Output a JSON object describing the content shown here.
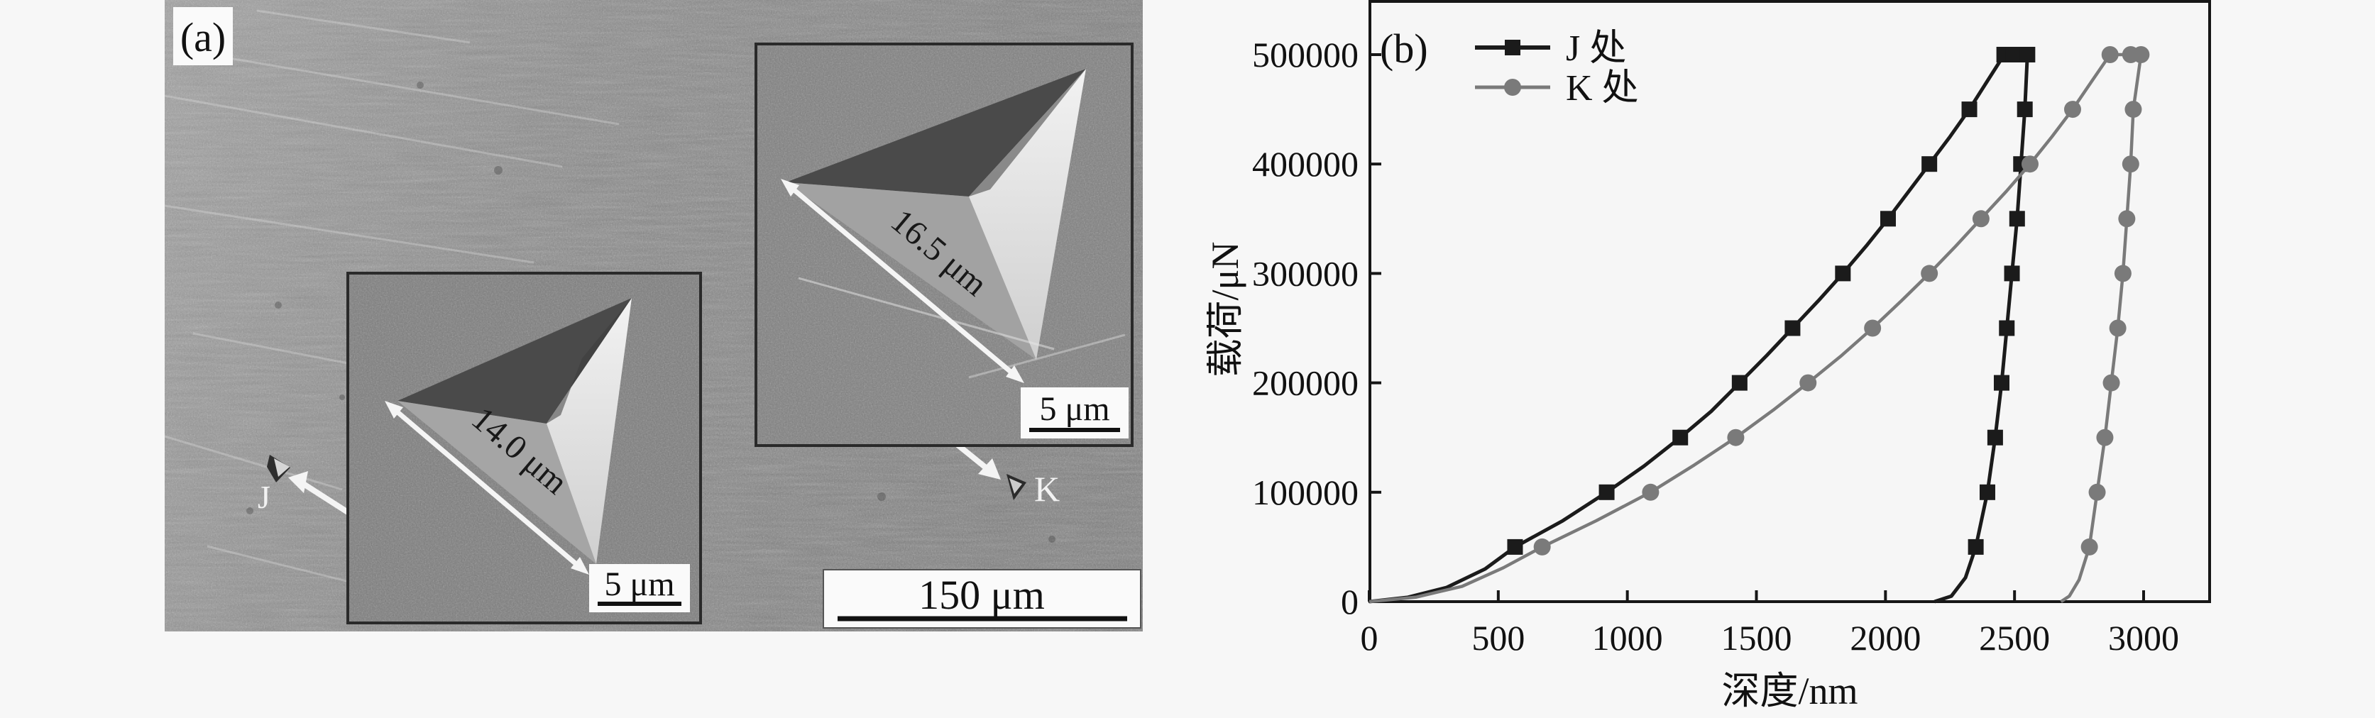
{
  "panel_a": {
    "label": "(a)",
    "j_marker_label": "J",
    "k_marker_label": "K",
    "inset_left": {
      "measurement_label": "14.0 μm",
      "scale_bar_label": "5 μm"
    },
    "inset_right": {
      "measurement_label": "16.5 μm",
      "scale_bar_label": "5 μm"
    },
    "main_scale_bar_label": "150 μm"
  },
  "panel_b": {
    "label": "(b)"
  },
  "chart_data": {
    "type": "line",
    "title": "",
    "xlabel": "深度/nm",
    "ylabel": "载荷/μN",
    "xlim": [
      0,
      3260
    ],
    "ylim": [
      0,
      548000
    ],
    "x_ticks": [
      0,
      500,
      1000,
      1500,
      2000,
      2500,
      3000
    ],
    "y_ticks": [
      0,
      100000,
      200000,
      300000,
      400000,
      500000
    ],
    "grid": false,
    "legend_position": "top-left-inside",
    "series": [
      {
        "name": "J 处",
        "color": "#1b1b1b",
        "marker": "square",
        "description": "loading to 500000 uN, hold, then unloading; residual depth ~2190 nm",
        "curve": [
          [
            0,
            0
          ],
          [
            150,
            4000
          ],
          [
            300,
            13000
          ],
          [
            450,
            30000
          ],
          [
            565,
            50000
          ],
          [
            750,
            74000
          ],
          [
            920,
            100000
          ],
          [
            1065,
            124000
          ],
          [
            1205,
            150000
          ],
          [
            1325,
            174000
          ],
          [
            1435,
            200000
          ],
          [
            1540,
            225000
          ],
          [
            1640,
            250000
          ],
          [
            1740,
            275000
          ],
          [
            1835,
            300000
          ],
          [
            1925,
            325000
          ],
          [
            2010,
            350000
          ],
          [
            2090,
            375000
          ],
          [
            2170,
            400000
          ],
          [
            2250,
            425000
          ],
          [
            2325,
            450000
          ],
          [
            2395,
            476000
          ],
          [
            2460,
            500000
          ],
          [
            2550,
            500000
          ],
          [
            2540,
            450000
          ],
          [
            2525,
            400000
          ],
          [
            2510,
            350000
          ],
          [
            2490,
            300000
          ],
          [
            2470,
            250000
          ],
          [
            2450,
            200000
          ],
          [
            2425,
            150000
          ],
          [
            2395,
            100000
          ],
          [
            2350,
            50000
          ],
          [
            2310,
            22000
          ],
          [
            2255,
            5000
          ],
          [
            2190,
            0
          ]
        ],
        "marker_points": [
          [
            565,
            50000
          ],
          [
            920,
            100000
          ],
          [
            1205,
            150000
          ],
          [
            1435,
            200000
          ],
          [
            1640,
            250000
          ],
          [
            1835,
            300000
          ],
          [
            2010,
            350000
          ],
          [
            2170,
            400000
          ],
          [
            2325,
            450000
          ],
          [
            2460,
            500000
          ],
          [
            2495,
            500000
          ],
          [
            2520,
            500000
          ],
          [
            2550,
            500000
          ],
          [
            2540,
            450000
          ],
          [
            2525,
            400000
          ],
          [
            2510,
            350000
          ],
          [
            2490,
            300000
          ],
          [
            2470,
            250000
          ],
          [
            2450,
            200000
          ],
          [
            2425,
            150000
          ],
          [
            2395,
            100000
          ],
          [
            2350,
            50000
          ]
        ]
      },
      {
        "name": "K 处",
        "color": "#7a7a7a",
        "marker": "circle",
        "description": "loading to 500000 uN, hold, then unloading; residual depth ~2680 nm",
        "curve": [
          [
            0,
            0
          ],
          [
            180,
            4000
          ],
          [
            360,
            14000
          ],
          [
            520,
            31000
          ],
          [
            670,
            50000
          ],
          [
            880,
            74000
          ],
          [
            1090,
            100000
          ],
          [
            1260,
            125000
          ],
          [
            1420,
            150000
          ],
          [
            1565,
            175000
          ],
          [
            1700,
            200000
          ],
          [
            1830,
            225000
          ],
          [
            1950,
            250000
          ],
          [
            2062,
            275000
          ],
          [
            2170,
            300000
          ],
          [
            2272,
            325000
          ],
          [
            2370,
            350000
          ],
          [
            2468,
            375000
          ],
          [
            2560,
            400000
          ],
          [
            2645,
            425000
          ],
          [
            2725,
            450000
          ],
          [
            2800,
            476000
          ],
          [
            2870,
            500000
          ],
          [
            2990,
            500000
          ],
          [
            2960,
            450000
          ],
          [
            2950,
            400000
          ],
          [
            2935,
            350000
          ],
          [
            2920,
            300000
          ],
          [
            2900,
            250000
          ],
          [
            2875,
            200000
          ],
          [
            2850,
            150000
          ],
          [
            2820,
            100000
          ],
          [
            2790,
            50000
          ],
          [
            2750,
            20000
          ],
          [
            2712,
            5000
          ],
          [
            2680,
            0
          ]
        ],
        "marker_points": [
          [
            670,
            50000
          ],
          [
            1090,
            100000
          ],
          [
            1420,
            150000
          ],
          [
            1700,
            200000
          ],
          [
            1950,
            250000
          ],
          [
            2170,
            300000
          ],
          [
            2370,
            350000
          ],
          [
            2560,
            400000
          ],
          [
            2725,
            450000
          ],
          [
            2870,
            500000
          ],
          [
            2950,
            500000
          ],
          [
            2990,
            500000
          ],
          [
            2960,
            450000
          ],
          [
            2950,
            400000
          ],
          [
            2935,
            350000
          ],
          [
            2920,
            300000
          ],
          [
            2900,
            250000
          ],
          [
            2875,
            200000
          ],
          [
            2850,
            150000
          ],
          [
            2820,
            100000
          ],
          [
            2790,
            50000
          ]
        ]
      }
    ]
  },
  "colors": {
    "background": "#f7f7f7",
    "axis": "#161616",
    "sem_base": "#8c8c8c",
    "series_j": "#1b1b1b",
    "series_k": "#7a7a7a"
  }
}
